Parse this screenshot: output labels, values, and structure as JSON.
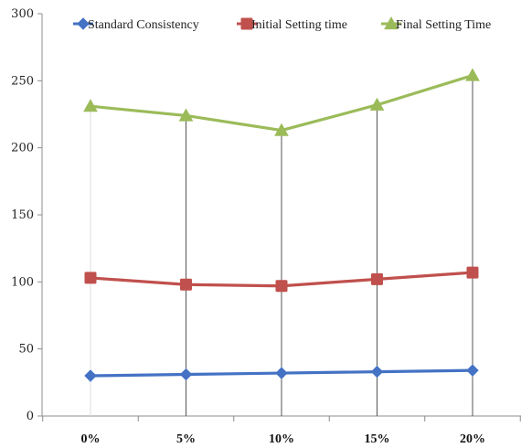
{
  "chart_data": {
    "type": "line",
    "title": "",
    "xlabel": "",
    "ylabel": "",
    "categories": [
      "0%",
      "5%",
      "10%",
      "15%",
      "20%"
    ],
    "ylim": [
      0,
      300
    ],
    "yticks": [
      "0",
      "50",
      "100",
      "150",
      "200",
      "250",
      "300"
    ],
    "grid": false,
    "drop_lines": true,
    "legend_position": "top",
    "series": [
      {
        "name": "Standard Consistency",
        "values": [
          30,
          31,
          32,
          33,
          34
        ],
        "color": "#4472C4",
        "marker": "diamond"
      },
      {
        "name": "Initial Setting time",
        "values": [
          103,
          98,
          97,
          102,
          107
        ],
        "color": "#C0504D",
        "marker": "square"
      },
      {
        "name": "Final Setting Time",
        "values": [
          231,
          224,
          213,
          232,
          254
        ],
        "color": "#9BBB59",
        "marker": "triangle"
      }
    ]
  }
}
